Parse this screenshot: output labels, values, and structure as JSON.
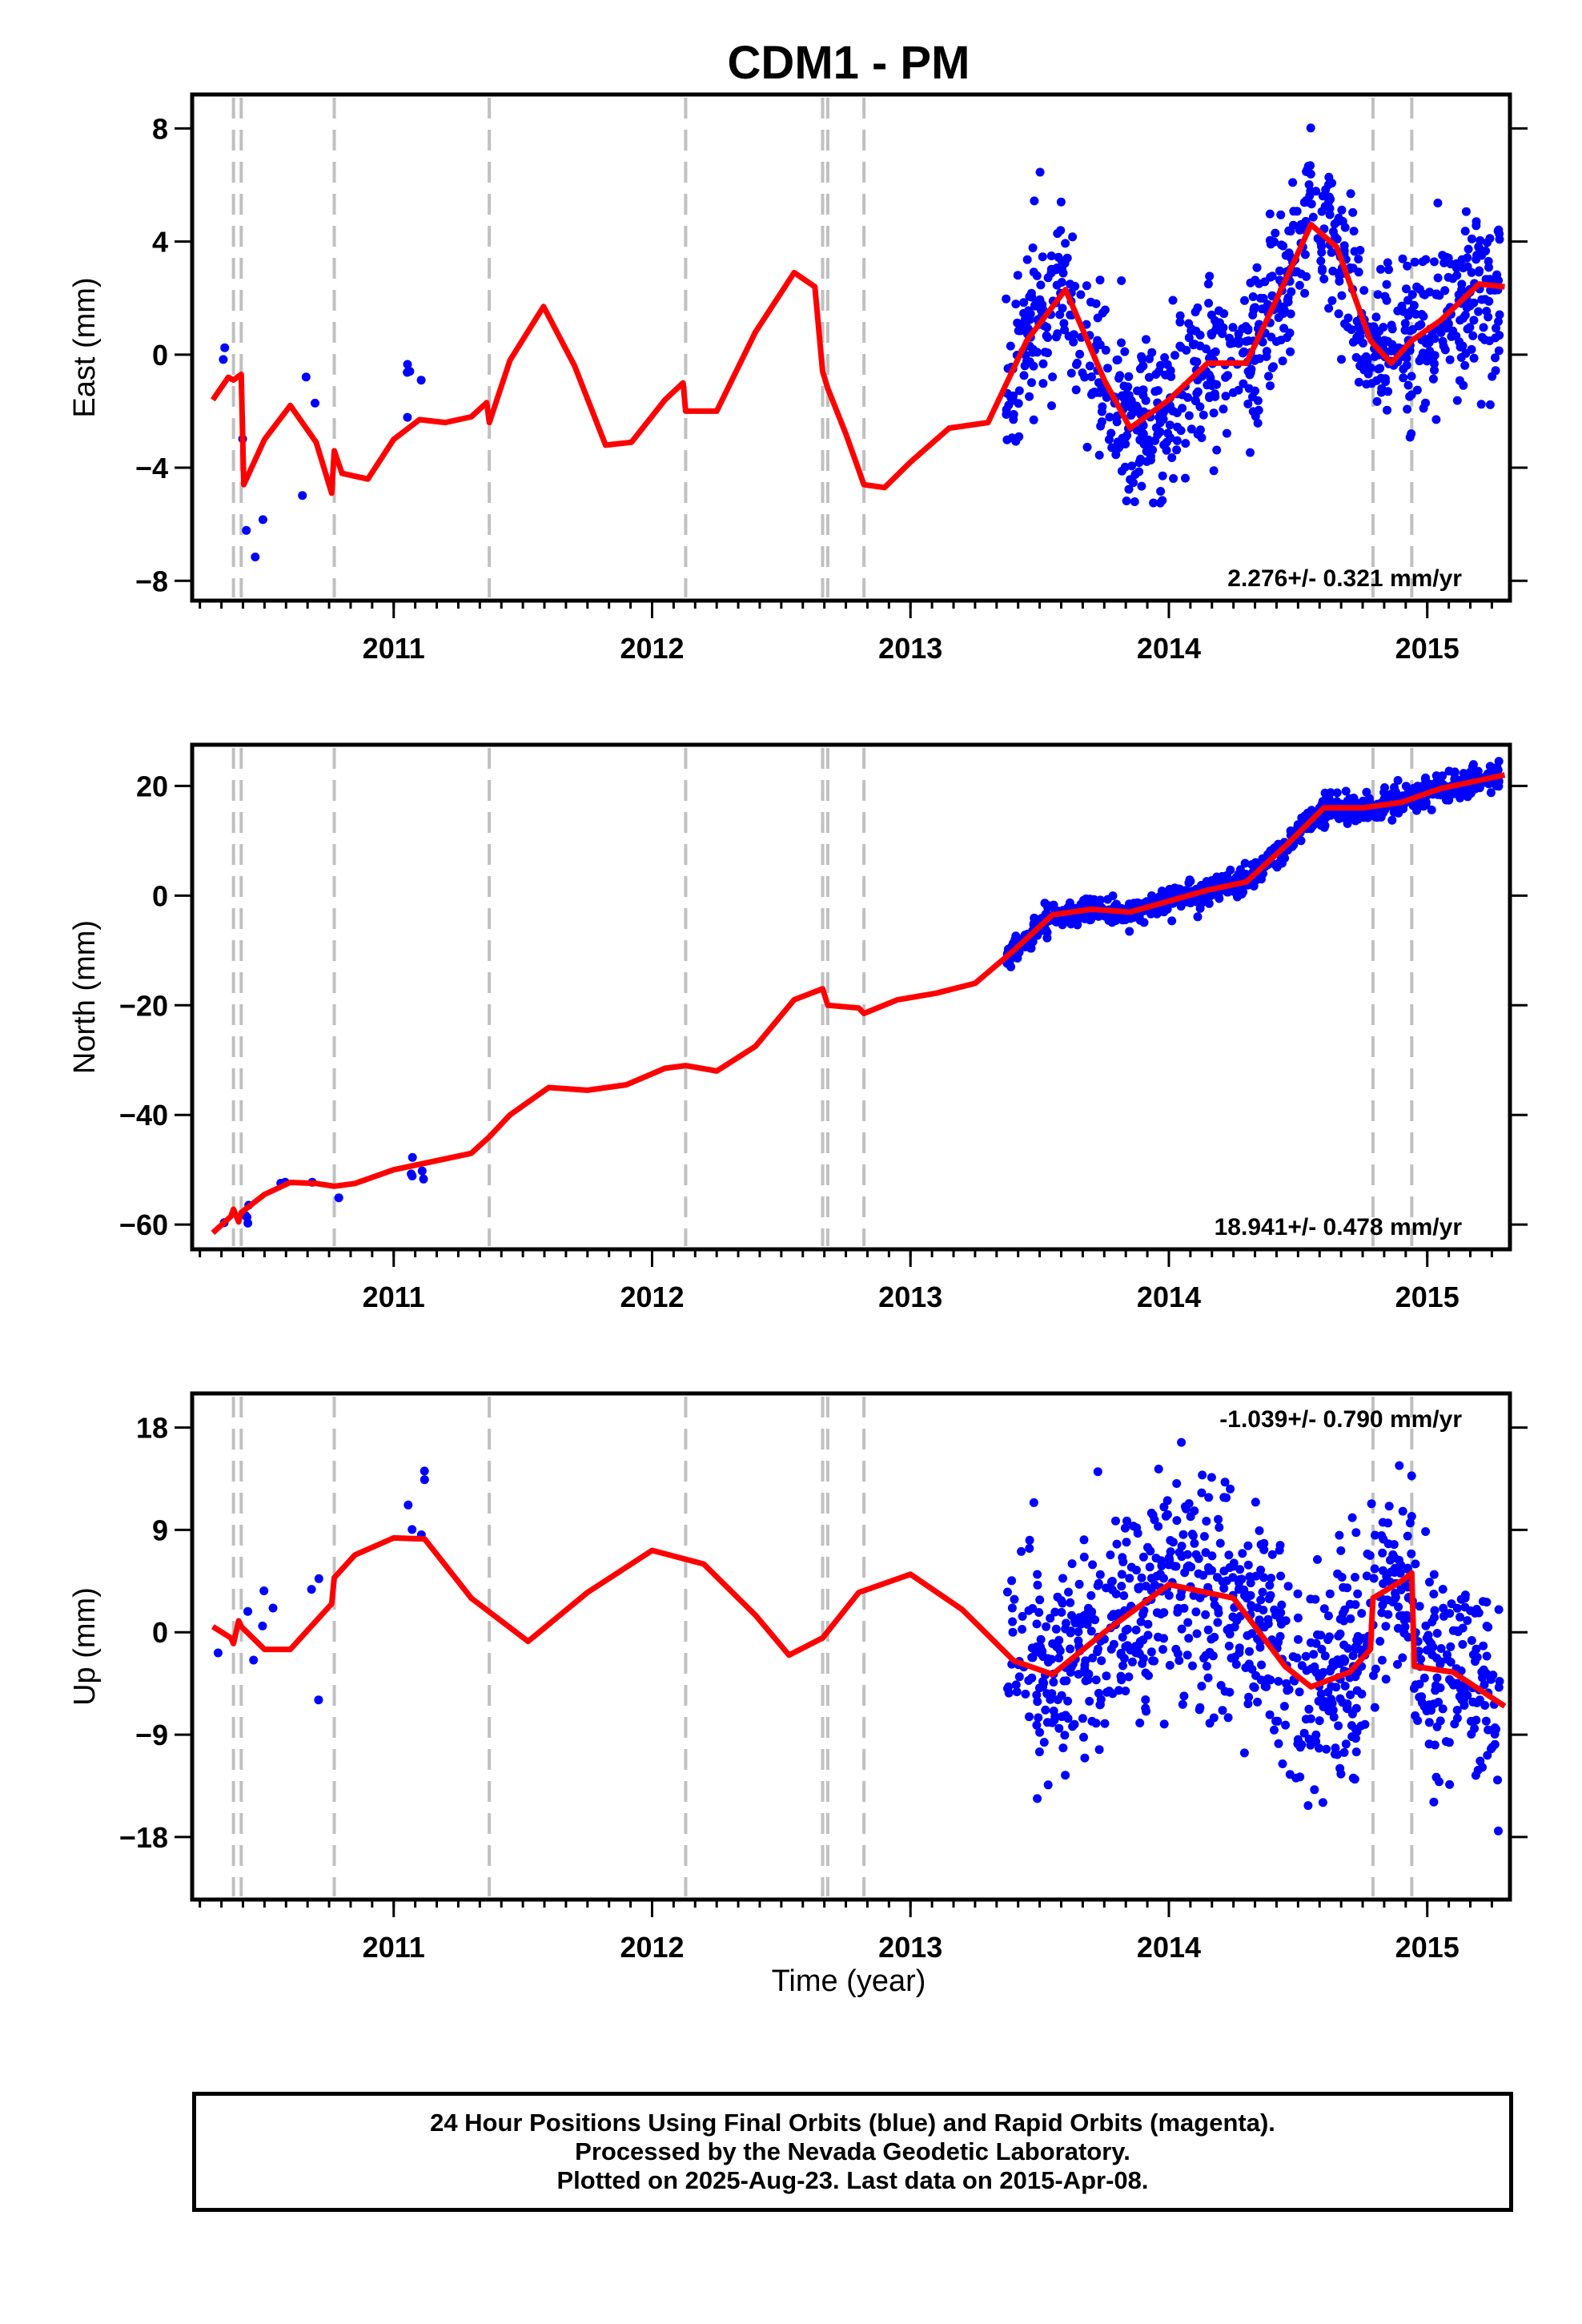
{
  "title": "CDM1 - PM",
  "xlabel": "Time (year)",
  "caption": {
    "line1": "24 Hour Positions Using Final Orbits (blue) and Rapid Orbits (magenta).",
    "line2": "Processed by the Nevada Geodetic Laboratory.",
    "line3": "Plotted on 2025-Aug-23. Last data on 2015-Apr-08."
  },
  "colors": {
    "points": "#0000ff",
    "model": "#ff0000",
    "event_lines": "#c0c0c0",
    "frame": "#000000"
  },
  "chart_data": [
    {
      "type": "scatter",
      "ylabel": "East (mm)",
      "rate_text": "2.276+/- 0.321 mm/yr",
      "xlim": [
        2010.22,
        2015.32
      ],
      "ylim": [
        -8.7,
        9.2
      ],
      "yticks": [
        8,
        4,
        0,
        -4,
        -8
      ],
      "xticks": [
        2011,
        2012,
        2013,
        2014,
        2015
      ],
      "event_lines": [
        2010.38,
        2010.41,
        2010.77,
        2011.37,
        2012.13,
        2012.66,
        2012.68,
        2012.82,
        2014.79,
        2014.94
      ],
      "model": {
        "x": [
          2010.3,
          2010.36,
          2010.38,
          2010.41,
          2010.42,
          2010.5,
          2010.6,
          2010.7,
          2010.76,
          2010.77,
          2010.8,
          2010.9,
          2011.0,
          2011.1,
          2011.2,
          2011.3,
          2011.36,
          2011.37,
          2011.45,
          2011.58,
          2011.7,
          2011.82,
          2011.92,
          2012.05,
          2012.12,
          2012.13,
          2012.25,
          2012.4,
          2012.55,
          2012.63,
          2012.66,
          2012.68,
          2012.75,
          2012.82,
          2012.9,
          2013.0,
          2013.15,
          2013.3,
          2013.45,
          2013.6,
          2013.75,
          2013.85,
          2014.0,
          2014.15,
          2014.3,
          2014.45,
          2014.55,
          2014.65,
          2014.78,
          2014.86,
          2014.94,
          2015.05,
          2015.2,
          2015.3
        ],
        "y": [
          -1.6,
          -0.8,
          -0.9,
          -0.7,
          -4.6,
          -3.0,
          -1.8,
          -3.1,
          -4.9,
          -3.4,
          -4.2,
          -4.4,
          -3.0,
          -2.3,
          -2.4,
          -2.2,
          -1.7,
          -2.4,
          -0.2,
          1.7,
          -0.4,
          -3.2,
          -3.1,
          -1.6,
          -1.0,
          -2.0,
          -2.0,
          0.8,
          2.9,
          2.4,
          -0.6,
          -1.2,
          -2.8,
          -4.6,
          -4.7,
          -3.8,
          -2.6,
          -2.4,
          0.5,
          2.3,
          -0.9,
          -2.6,
          -1.6,
          -0.3,
          -0.3,
          2.6,
          4.6,
          3.8,
          0.5,
          -0.3,
          0.5,
          1.2,
          2.5,
          2.4
        ]
      },
      "points": {
        "seed": 11,
        "segments": [
          [
            2010.3,
            2010.84,
            1.9,
            9
          ],
          [
            2011.05,
            2011.12,
            1.8,
            5
          ],
          [
            2013.37,
            2015.28,
            1.5,
            900
          ]
        ]
      }
    },
    {
      "type": "scatter",
      "ylabel": "North (mm)",
      "rate_text": "18.941+/- 0.478 mm/yr",
      "xlim": [
        2010.22,
        2015.32
      ],
      "ylim": [
        -64.5,
        27.5
      ],
      "yticks": [
        20,
        0,
        -20,
        -40,
        -60
      ],
      "xticks": [
        2011,
        2012,
        2013,
        2014,
        2015
      ],
      "event_lines": [
        2010.38,
        2010.41,
        2010.77,
        2011.37,
        2012.13,
        2012.66,
        2012.68,
        2012.82,
        2014.79,
        2014.94
      ],
      "model": {
        "x": [
          2010.3,
          2010.37,
          2010.38,
          2010.4,
          2010.41,
          2010.5,
          2010.6,
          2010.7,
          2010.77,
          2010.85,
          2011.0,
          2011.15,
          2011.3,
          2011.37,
          2011.45,
          2011.6,
          2011.75,
          2011.9,
          2012.05,
          2012.13,
          2012.25,
          2012.4,
          2012.55,
          2012.66,
          2012.68,
          2012.8,
          2012.82,
          2012.95,
          2013.1,
          2013.25,
          2013.4,
          2013.55,
          2013.7,
          2013.85,
          2014.0,
          2014.15,
          2014.3,
          2014.45,
          2014.6,
          2014.75,
          2014.9,
          2015.05,
          2015.2,
          2015.3
        ],
        "y": [
          -61.5,
          -58.5,
          -57.2,
          -59.5,
          -57.8,
          -54.5,
          -52.3,
          -52.5,
          -53.0,
          -52.5,
          -50.0,
          -48.5,
          -47.0,
          -44.0,
          -40.0,
          -35.0,
          -35.5,
          -34.5,
          -31.5,
          -31.0,
          -32.0,
          -27.5,
          -19.0,
          -17.0,
          -20.0,
          -20.5,
          -21.5,
          -19.0,
          -17.8,
          -16.0,
          -10.0,
          -3.5,
          -2.5,
          -3.0,
          -1.0,
          1.0,
          2.5,
          9.0,
          16.0,
          16.0,
          17.0,
          19.5,
          21.0,
          22.0
        ]
      },
      "points": {
        "seed": 23,
        "segments": [
          [
            2010.3,
            2010.84,
            1.3,
            9
          ],
          [
            2011.05,
            2011.12,
            1.3,
            5
          ],
          [
            2013.37,
            2015.28,
            1.2,
            900
          ]
        ]
      }
    },
    {
      "type": "scatter",
      "ylabel": "Up (mm)",
      "rate_text": "-1.039+/- 0.790 mm/yr",
      "xlim": [
        2010.22,
        2015.32
      ],
      "ylim": [
        -23.5,
        21.0
      ],
      "yticks": [
        18,
        9,
        0,
        -9,
        -18
      ],
      "xticks": [
        2011,
        2012,
        2013,
        2014,
        2015
      ],
      "event_lines": [
        2010.38,
        2010.41,
        2010.77,
        2011.37,
        2012.13,
        2012.66,
        2012.68,
        2012.82,
        2014.79,
        2014.94
      ],
      "model": {
        "x": [
          2010.3,
          2010.37,
          2010.38,
          2010.4,
          2010.41,
          2010.5,
          2010.6,
          2010.7,
          2010.76,
          2010.77,
          2010.85,
          2011.0,
          2011.12,
          2011.3,
          2011.52,
          2011.75,
          2012.0,
          2012.2,
          2012.4,
          2012.53,
          2012.66,
          2012.8,
          2013.0,
          2013.2,
          2013.4,
          2013.55,
          2013.75,
          2014.0,
          2014.25,
          2014.45,
          2014.55,
          2014.7,
          2014.78,
          2014.79,
          2014.9,
          2014.94,
          2014.95,
          2015.1,
          2015.3
        ],
        "y": [
          0.5,
          -0.5,
          -1.0,
          1.0,
          0.5,
          -1.5,
          -1.5,
          1.0,
          2.5,
          4.8,
          6.8,
          8.3,
          8.2,
          3.0,
          -0.8,
          3.5,
          7.2,
          6.0,
          1.5,
          -2.0,
          -0.5,
          3.5,
          5.1,
          2.0,
          -2.5,
          -3.7,
          0.0,
          4.2,
          3.0,
          -3.0,
          -4.8,
          -3.5,
          -1.5,
          3.0,
          4.5,
          5.2,
          -3.0,
          -3.5,
          -6.5
        ]
      },
      "points": {
        "seed": 37,
        "segments": [
          [
            2010.3,
            2010.84,
            3.5,
            9
          ],
          [
            2011.05,
            2011.12,
            4.0,
            5
          ],
          [
            2013.37,
            2015.28,
            4.8,
            900
          ]
        ]
      }
    }
  ]
}
